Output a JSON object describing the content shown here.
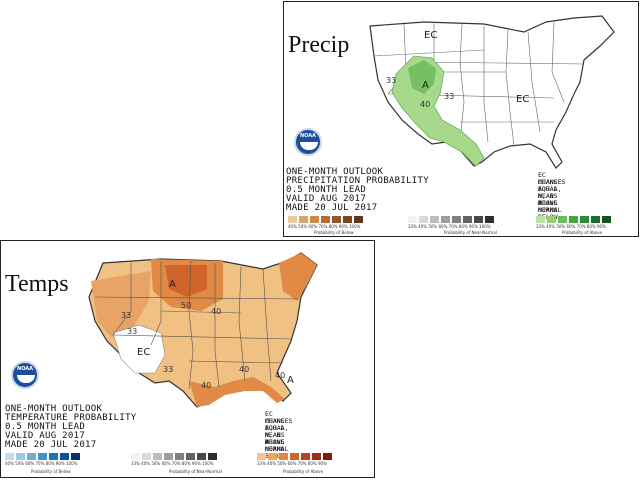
{
  "precip": {
    "label": "Precip",
    "title_lines": [
      "ONE-MONTH OUTLOOK",
      "PRECIPITATION PROBABILITY",
      "0.5 MONTH LEAD",
      "VALID AUG 2017",
      "MADE 20 JUL 2017"
    ],
    "legend_note": [
      "EC MEANS EQUAL",
      "CHANCES FOR A, N, B",
      "A MEANS ABOVE",
      "N MEANS NORMAL",
      "B MEANS BELOW"
    ],
    "map_labels": {
      "ec_north": "EC",
      "ec_east": "EC",
      "above": "A",
      "c33a": "33",
      "c40": "40",
      "c33b": "33"
    },
    "below_ticks": "40% 50% 60% 70% 80% 90% 100%",
    "normal_ticks": "33% 40% 50% 60% 70% 80% 90% 100%",
    "above_ticks": "33% 40% 50% 60% 70% 80% 90%",
    "cat_below": "Probability of Below",
    "cat_normal": "Probability of Near-Normal",
    "cat_above": "Probability of Above",
    "colors": {
      "below": [
        "#e7c9a2",
        "#d9a36b",
        "#c98a4c",
        "#b36c33",
        "#94562a",
        "#7a4624",
        "#5e361c"
      ],
      "normal": [
        "#f2f2f2",
        "#d9d9d9",
        "#bdbdbd",
        "#9e9e9e",
        "#808080",
        "#636363",
        "#484848",
        "#2e2e2e"
      ],
      "above": [
        "#b9e3a5",
        "#92d07a",
        "#6bbd5b",
        "#48a545",
        "#2f8a3b",
        "#1f6e30",
        "#145424"
      ]
    }
  },
  "temps": {
    "label": "Temps",
    "title_lines": [
      "ONE-MONTH OUTLOOK",
      "TEMPERATURE PROBABILITY",
      "0.5 MONTH LEAD",
      "VALID AUG 2017",
      "MADE 20 JUL 2017"
    ],
    "legend_note": [
      "EC MEANS EQUAL",
      "CHANCES FOR A, N, B",
      "A MEANS ABOVE",
      "N MEANS NORMAL",
      "B MEANS BELOW"
    ],
    "map_labels": {
      "a_north": "A",
      "a_se": "A",
      "ec_sw": "EC",
      "c50": "50",
      "c40a": "40",
      "c40b": "40",
      "c40c": "40",
      "c33a": "33",
      "c33b": "33",
      "c33c": "33",
      "c40d": "40"
    },
    "below_ticks": "40% 50% 60% 70% 80% 90% 100%",
    "normal_ticks": "33% 40% 50% 60% 70% 80% 90% 100%",
    "above_ticks": "33% 40% 50% 60% 70% 80% 90%",
    "cat_below": "Probability of Below",
    "cat_normal": "Probability of Near-Normal",
    "cat_above": "Probability of Above",
    "colors": {
      "below": [
        "#c6dbef",
        "#9ecae1",
        "#6baed6",
        "#4292c6",
        "#2171b5",
        "#08519c",
        "#08306b"
      ],
      "normal": [
        "#f2f2f2",
        "#d9d9d9",
        "#bdbdbd",
        "#9e9e9e",
        "#808080",
        "#636363",
        "#484848",
        "#2e2e2e"
      ],
      "above": [
        "#f6c58f",
        "#eca85f",
        "#e0873d",
        "#d0642a",
        "#bb4420",
        "#9e2b17",
        "#7c1a10"
      ]
    }
  }
}
